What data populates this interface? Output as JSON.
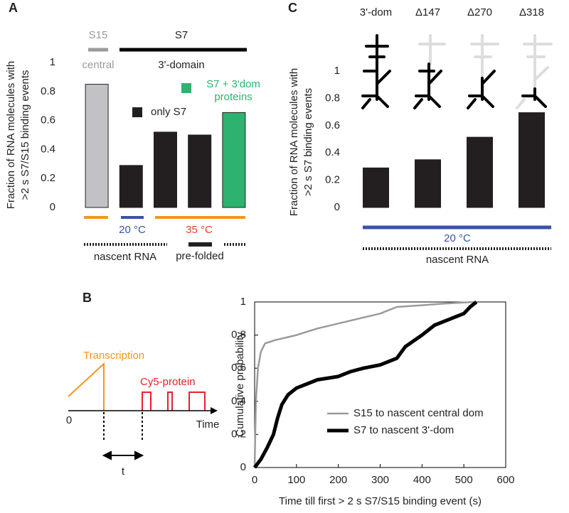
{
  "chart_data": [
    {
      "type": "bar",
      "panel": "A",
      "categories": [
        null,
        null,
        null,
        null,
        null
      ],
      "values": [
        0.85,
        0.29,
        0.52,
        0.5,
        0.655
      ],
      "colors": [
        "#c2c2c6",
        "#231f20",
        "#231f20",
        "#231f20",
        "#2db36f"
      ],
      "ylim": [
        0,
        1
      ],
      "yticks": [
        0,
        0.2,
        0.4,
        0.6,
        0.8,
        1
      ],
      "ylabel": [
        "Fraction of RNA molecules with",
        ">2 s S7/S15 binding events"
      ],
      "legend": [
        {
          "name": "S7 + 3'dom proteins",
          "color": "#2db36f"
        },
        {
          "name": "only S7",
          "color": "#231f20"
        }
      ],
      "annotations": [
        "S15",
        "central",
        "S7",
        "3'-domain",
        "20 °C",
        "35 °C",
        "nascent RNA",
        "pre-folded"
      ]
    },
    {
      "type": "bar",
      "panel": "C",
      "categories": [
        "3'-dom",
        "Δ147",
        "Δ270",
        "Δ318"
      ],
      "values": [
        0.29,
        0.35,
        0.515,
        0.695
      ],
      "colors": [
        "#231f20",
        "#231f20",
        "#231f20",
        "#231f20"
      ],
      "ylim": [
        0,
        1
      ],
      "yticks": [
        0,
        0.2,
        0.4,
        0.6,
        0.8,
        1
      ],
      "ylabel": [
        "Fraction of RNA molecules with",
        ">2 s S7 binding events"
      ],
      "annotations": [
        "20 °C",
        "nascent RNA"
      ]
    },
    {
      "type": "line",
      "panel": "B",
      "xlabel": "Time till first > 2 s S7/S15 binding event (s)",
      "ylabel": "Cumulative probability",
      "xlim": [
        0,
        600
      ],
      "xticks": [
        0,
        100,
        200,
        300,
        400,
        500,
        600
      ],
      "ylim": [
        0,
        1
      ],
      "yticks": [
        0,
        0.2,
        0.4,
        0.6,
        0.8,
        1
      ],
      "series": [
        {
          "name": "S15 to nascent central dom",
          "color": "#9a9a9a",
          "width": 2.5,
          "x": [
            0,
            3,
            8,
            15,
            25,
            50,
            100,
            150,
            200,
            250,
            300,
            340,
            400,
            450,
            525
          ],
          "values": [
            0,
            0.4,
            0.6,
            0.7,
            0.75,
            0.77,
            0.8,
            0.84,
            0.87,
            0.9,
            0.93,
            0.97,
            0.98,
            0.99,
            1
          ]
        },
        {
          "name": "S7 to nascent 3'-dom",
          "color": "#000000",
          "width": 5,
          "x": [
            0,
            15,
            30,
            45,
            55,
            65,
            80,
            100,
            150,
            200,
            230,
            260,
            300,
            340,
            360,
            400,
            430,
            470,
            500,
            515,
            530
          ],
          "values": [
            0,
            0.05,
            0.12,
            0.2,
            0.3,
            0.38,
            0.44,
            0.48,
            0.53,
            0.55,
            0.58,
            0.6,
            0.62,
            0.66,
            0.73,
            0.8,
            0.86,
            0.9,
            0.93,
            0.97,
            1
          ]
        }
      ],
      "annotations": [
        "Transcription",
        "Cy5-protein",
        "0",
        "Time",
        "t"
      ]
    }
  ]
}
